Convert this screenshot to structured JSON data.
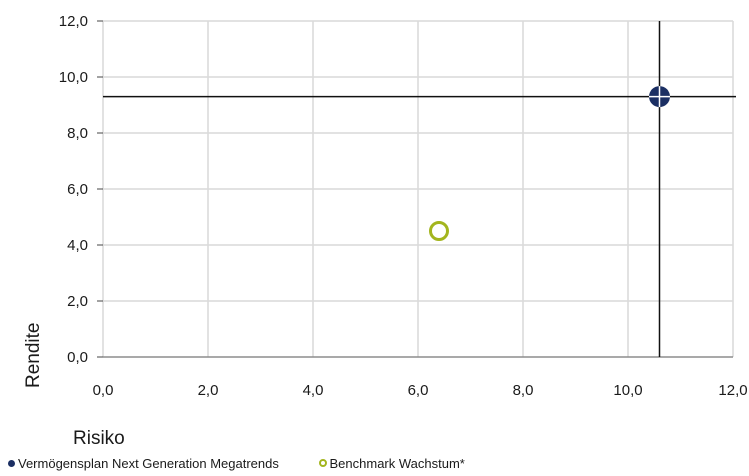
{
  "chart_data": {
    "type": "scatter",
    "title": "",
    "xlabel": "Risiko",
    "ylabel": "Rendite",
    "xlim": [
      0,
      12
    ],
    "ylim": [
      0,
      12
    ],
    "x_ticks": [
      "0,0",
      "2,0",
      "4,0",
      "6,0",
      "8,0",
      "10,0",
      "12,0"
    ],
    "y_ticks": [
      "0,0",
      "2,0",
      "4,0",
      "6,0",
      "8,0",
      "10,0",
      "12,0"
    ],
    "grid": true,
    "legend_position": "bottom",
    "series": [
      {
        "name": "Vermögensplan Next Generation Megatrends",
        "x": 10.6,
        "y": 9.3,
        "color": "#1b2f63",
        "marker": "filled-circle-crosshair"
      },
      {
        "name": "Benchmark Wachstum*",
        "x": 6.4,
        "y": 4.5,
        "color": "#a3b51e",
        "marker": "ring"
      }
    ]
  }
}
